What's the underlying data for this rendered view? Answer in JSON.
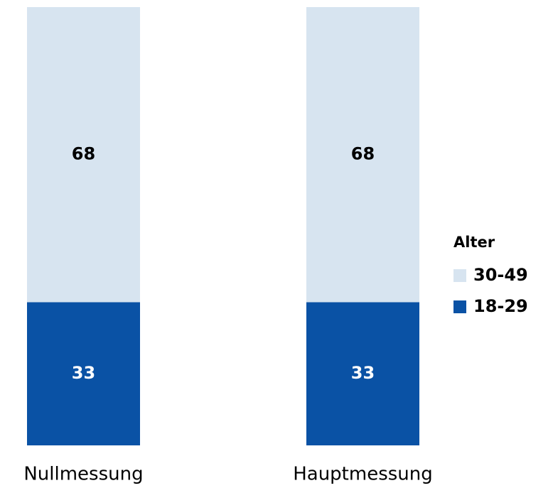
{
  "chart_data": {
    "type": "stacked_bar",
    "categories": [
      "Nullmessung",
      "Hauptmessung"
    ],
    "legend_title": "Alter",
    "series": [
      {
        "name": "18-29",
        "color": "#0a52a5",
        "values": [
          33,
          33
        ]
      },
      {
        "name": "30-49",
        "color": "#d7e4f0",
        "values": [
          68,
          68
        ]
      }
    ],
    "legend": "right"
  }
}
